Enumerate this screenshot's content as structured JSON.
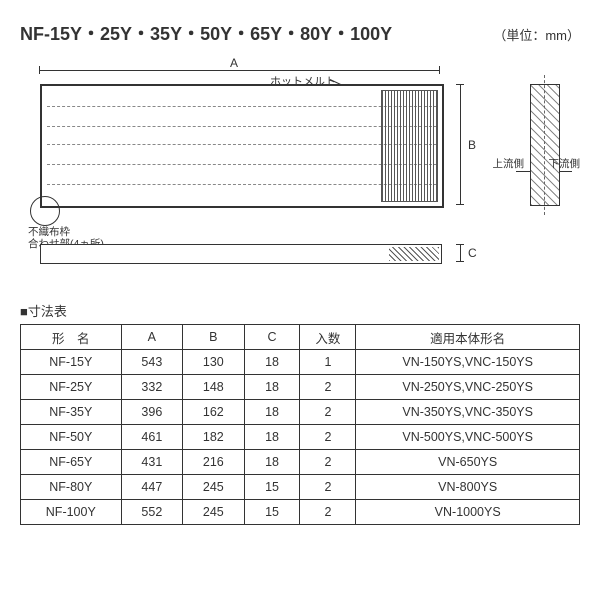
{
  "header": {
    "title": "NF-15Y・25Y・35Y・50Y・65Y・80Y・100Y",
    "unit": "（単位：mm）"
  },
  "diagram": {
    "dim_a": "A",
    "dim_b": "B",
    "dim_c": "C",
    "label_hotmelt": "ホットメルト",
    "label_nonwoven": "不織布枠",
    "label_joint": "合わせ部(4ヵ所)",
    "label_upstream": "上流側",
    "label_downstream": "下流側"
  },
  "table": {
    "title": "■寸法表",
    "columns": [
      "形　名",
      "A",
      "B",
      "C",
      "入数",
      "適用本体形名"
    ],
    "rows": [
      [
        "NF-15Y",
        "543",
        "130",
        "18",
        "1",
        "VN-150YS,VNC-150YS"
      ],
      [
        "NF-25Y",
        "332",
        "148",
        "18",
        "2",
        "VN-250YS,VNC-250YS"
      ],
      [
        "NF-35Y",
        "396",
        "162",
        "18",
        "2",
        "VN-350YS,VNC-350YS"
      ],
      [
        "NF-50Y",
        "461",
        "182",
        "18",
        "2",
        "VN-500YS,VNC-500YS"
      ],
      [
        "NF-65Y",
        "431",
        "216",
        "18",
        "2",
        "VN-650YS"
      ],
      [
        "NF-80Y",
        "447",
        "245",
        "15",
        "2",
        "VN-800YS"
      ],
      [
        "NF-100Y",
        "552",
        "245",
        "15",
        "2",
        "VN-1000YS"
      ]
    ],
    "col_widths": [
      "18%",
      "11%",
      "11%",
      "10%",
      "10%",
      "40%"
    ]
  }
}
